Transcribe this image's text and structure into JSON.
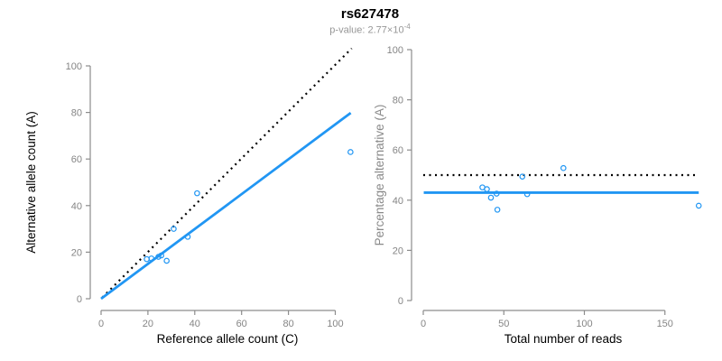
{
  "header": {
    "title": "rs627478",
    "subtitle_prefix": "p-value: 2.77×10",
    "subtitle_exponent": "-4"
  },
  "colors": {
    "accent_blue": "#2196F3",
    "dotted_black": "#000000",
    "axis_line": "#8c8c8c",
    "tick_label": "#858585",
    "axis_title": "#000000",
    "right_ylabel": "#8a8a8a",
    "subtitle_gray": "#979797",
    "background": "#ffffff"
  },
  "chart_data": [
    {
      "type": "scatter",
      "name": "allele-counts-panel",
      "xlabel": "Reference allele count (C)",
      "ylabel": "Alternative allele count (A)",
      "xlim": [
        0,
        107.5
      ],
      "ylim": [
        0,
        107.5
      ],
      "xticks": [
        0,
        20,
        40,
        60,
        80,
        100
      ],
      "yticks": [
        0,
        20,
        40,
        60,
        80,
        100
      ],
      "grid": false,
      "legend": "none",
      "points": [
        [
          19.5,
          17
        ],
        [
          21.5,
          17.3
        ],
        [
          24.5,
          18
        ],
        [
          25.7,
          18.6
        ],
        [
          28,
          16.3
        ],
        [
          31,
          30
        ],
        [
          37,
          26.6
        ],
        [
          41,
          45.3
        ],
        [
          106.5,
          63
        ]
      ],
      "lines": [
        {
          "name": "identity-line",
          "style": "dotted",
          "color_key": "dotted_black",
          "x1": 0.5,
          "y1": 0.5,
          "x2": 107,
          "y2": 107.5
        },
        {
          "name": "fit-line",
          "style": "solid",
          "color_key": "accent_blue",
          "x1": 0,
          "y1": 0,
          "x2": 106.6,
          "y2": 79.8
        }
      ]
    },
    {
      "type": "scatter",
      "name": "percentage-panel",
      "xlabel": "Total number of reads",
      "ylabel": "Percentage alternative (A)",
      "xlim": [
        0,
        173
      ],
      "ylim": [
        0,
        100
      ],
      "xticks": [
        0,
        50,
        100,
        150
      ],
      "yticks": [
        0,
        20,
        40,
        60,
        80,
        100
      ],
      "grid": false,
      "legend": "none",
      "points": [
        [
          36.7,
          45.1
        ],
        [
          39.5,
          44.4
        ],
        [
          42,
          41
        ],
        [
          45.5,
          42.6
        ],
        [
          46,
          36.2
        ],
        [
          61.5,
          49.4
        ],
        [
          64.5,
          42.4
        ],
        [
          87,
          52.8
        ],
        [
          171,
          37.8
        ]
      ],
      "lines": [
        {
          "name": "fifty-percent-line",
          "style": "dotted",
          "color_key": "dotted_black",
          "x1": 0,
          "y1": 50,
          "x2": 170,
          "y2": 50
        },
        {
          "name": "mean-percentage-line",
          "style": "solid",
          "color_key": "accent_blue",
          "x1": 0.3,
          "y1": 43,
          "x2": 171,
          "y2": 43
        }
      ]
    }
  ]
}
